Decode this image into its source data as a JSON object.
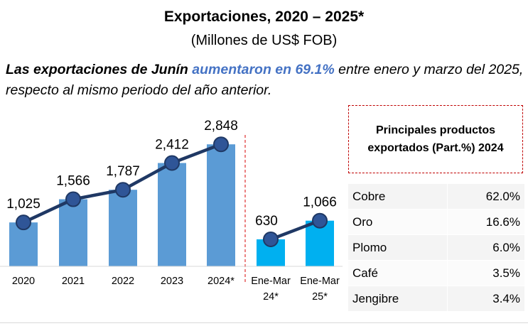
{
  "chart_data": {
    "type": "bar",
    "title": "Exportaciones, 2020 – 2025*",
    "subtitle": "(Millones de US$ FOB)",
    "note": [
      "Las exportaciones de Junín",
      "aumentaron en 69.1%",
      "entre enero y marzo del 2025, respecto al mismo periodo del año anterior."
    ],
    "categories": [
      "2020",
      "2021",
      "2022",
      "2023",
      "2024*",
      "Ene-Mar 24*",
      "Ene-Mar 25*"
    ],
    "values": [
      1025,
      1566,
      1787,
      2412,
      2848,
      630,
      1066
    ],
    "value_labels": [
      "1,025",
      "1,566",
      "1,787",
      "2,412",
      "2,848",
      "630",
      "1,066"
    ],
    "colors": [
      "#5b9bd5",
      "#5b9bd5",
      "#5b9bd5",
      "#5b9bd5",
      "#5b9bd5",
      "#00b0f0",
      "#00b0f0"
    ],
    "series": [
      {
        "color": "#1f3864",
        "values": [
          1025,
          1566,
          1787,
          2412,
          2848,
          null,
          null
        ]
      },
      {
        "color": "#1f3864",
        "values": [
          null,
          null,
          null,
          null,
          null,
          630,
          1066
        ]
      }
    ],
    "ylim": [
      0,
      3100
    ]
  },
  "table": {
    "title": "Principales productos exportados (Part.%) 2024",
    "rows": [
      [
        "Cobre",
        "62.0%"
      ],
      [
        "Oro",
        "16.6%"
      ],
      [
        "Plomo",
        "6.0%"
      ],
      [
        "Café",
        "3.5%"
      ],
      [
        "Jengibre",
        "3.4%"
      ]
    ]
  }
}
